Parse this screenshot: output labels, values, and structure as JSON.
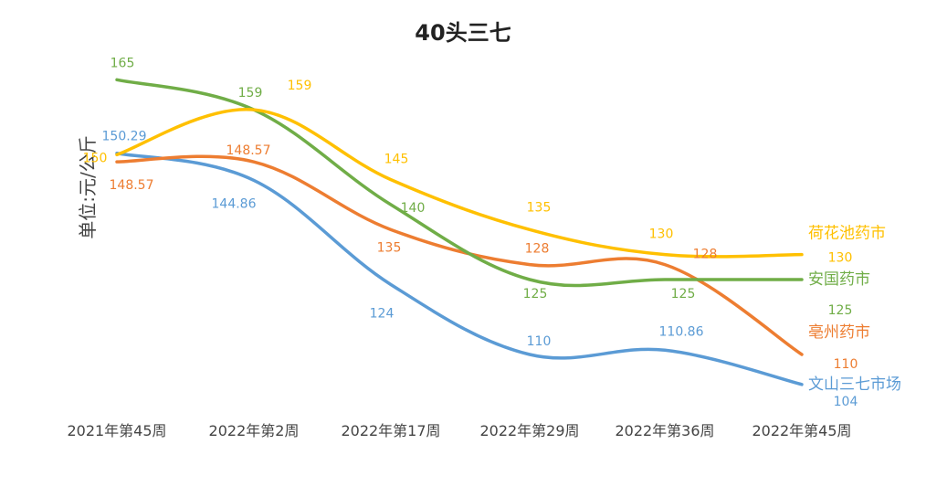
{
  "chart_data": {
    "type": "line",
    "title": "40头三七",
    "xlabel": "",
    "ylabel": "单位:元/公斤",
    "categories": [
      "2021年第45周",
      "2022年第2周",
      "2022年第17周",
      "2022年第29周",
      "2022年第36周",
      "2022年第45周"
    ],
    "ylim": [
      95,
      170
    ],
    "grid": false,
    "legend": "right, labels at line ends",
    "series": [
      {
        "name": "荷花池药市",
        "color": "#FFC000",
        "values": [
          150,
          159,
          145,
          135,
          130,
          130
        ]
      },
      {
        "name": "安国药市",
        "color": "#70AD47",
        "values": [
          165,
          159,
          140,
          125,
          125,
          125
        ]
      },
      {
        "name": "亳州药市",
        "color": "#ED7D31",
        "values": [
          148.57,
          148.57,
          135,
          128,
          128,
          110
        ]
      },
      {
        "name": "文山三七市场",
        "color": "#5B9BD5",
        "values": [
          150.29,
          144.86,
          124,
          110,
          110.86,
          104
        ]
      }
    ]
  }
}
